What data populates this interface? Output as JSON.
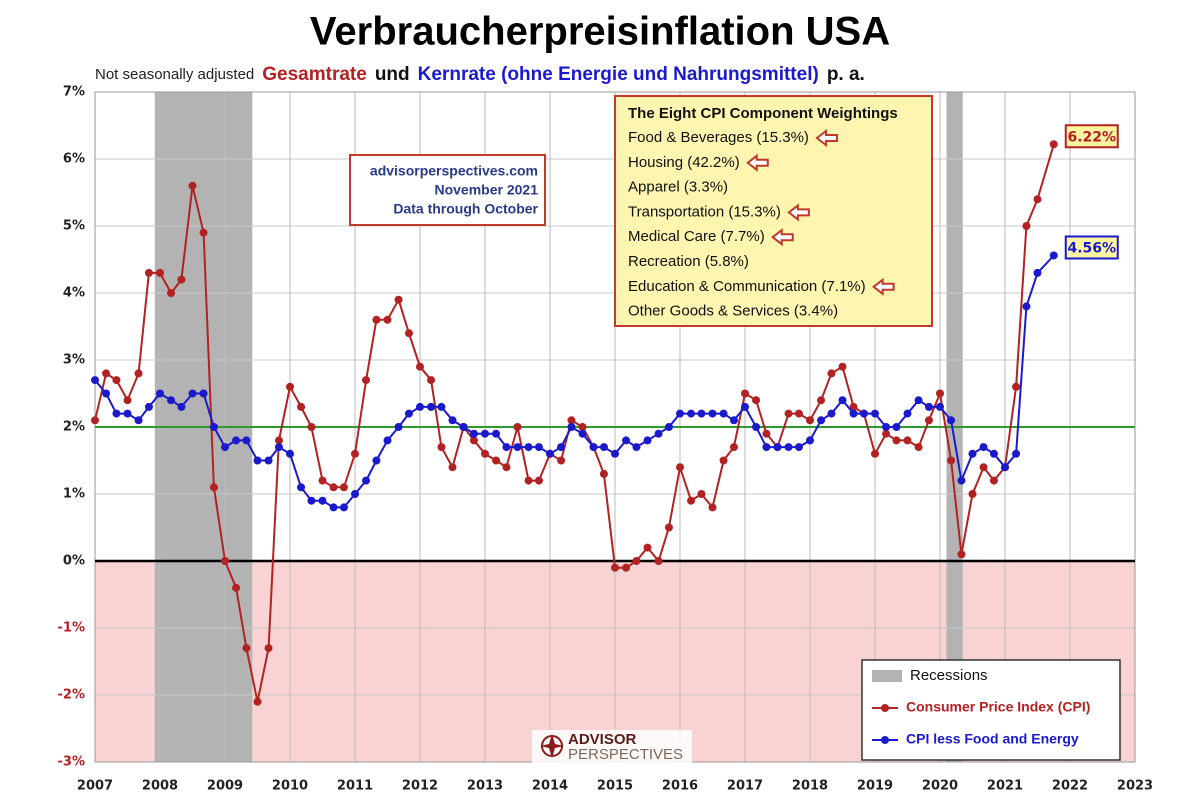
{
  "chart_data": {
    "type": "line",
    "title": "Verbraucherpreisinflation USA",
    "subtitle": [
      {
        "text": "Not seasonally adjusted",
        "color": "#222222"
      },
      {
        "text": "Gesamtrate",
        "color": "#b22222"
      },
      {
        "text": "und",
        "color": "#111111"
      },
      {
        "text": "Kernrate (ohne Energie und Nahrungsmittel)",
        "color": "#1a1acc"
      },
      {
        "text": "p. a.",
        "color": "#111111"
      }
    ],
    "xlim": [
      2007,
      2023
    ],
    "xticks": [
      2007,
      2008,
      2009,
      2010,
      2011,
      2012,
      2013,
      2014,
      2015,
      2016,
      2017,
      2018,
      2019,
      2020,
      2021,
      2022,
      2023
    ],
    "ylim": [
      -3,
      7
    ],
    "yticks": [
      {
        "value": -3,
        "label": "-3%"
      },
      {
        "value": -2,
        "label": "-2%"
      },
      {
        "value": -1,
        "label": "-1%"
      },
      {
        "value": 0,
        "label": "0%"
      },
      {
        "value": 1,
        "label": "1%"
      },
      {
        "value": 2,
        "label": "2%"
      },
      {
        "value": 3,
        "label": "3%"
      },
      {
        "value": 4,
        "label": "4%"
      },
      {
        "value": 5,
        "label": "5%"
      },
      {
        "value": 6,
        "label": "6%"
      },
      {
        "value": 7,
        "label": "7%"
      }
    ],
    "grid": true,
    "reference_line": {
      "value": 2,
      "color": "#2e9a2e"
    },
    "negative_fill": "#f9d3d3",
    "x": [
      2007,
      2007.17,
      2007.33,
      2007.5,
      2007.67,
      2007.83,
      2008,
      2008.17,
      2008.33,
      2008.5,
      2008.67,
      2008.83,
      2009,
      2009.17,
      2009.33,
      2009.5,
      2009.67,
      2009.83,
      2010,
      2010.17,
      2010.33,
      2010.5,
      2010.67,
      2010.83,
      2011,
      2011.17,
      2011.33,
      2011.5,
      2011.67,
      2011.83,
      2012,
      2012.17,
      2012.33,
      2012.5,
      2012.67,
      2012.83,
      2013,
      2013.17,
      2013.33,
      2013.5,
      2013.67,
      2013.83,
      2014,
      2014.17,
      2014.33,
      2014.5,
      2014.67,
      2014.83,
      2015,
      2015.17,
      2015.33,
      2015.5,
      2015.67,
      2015.83,
      2016,
      2016.17,
      2016.33,
      2016.5,
      2016.67,
      2016.83,
      2017,
      2017.17,
      2017.33,
      2017.5,
      2017.67,
      2017.83,
      2018,
      2018.17,
      2018.33,
      2018.5,
      2018.67,
      2018.83,
      2019,
      2019.17,
      2019.33,
      2019.5,
      2019.67,
      2019.83,
      2020,
      2020.17,
      2020.33,
      2020.5,
      2020.67,
      2020.83,
      2021,
      2021.17,
      2021.33,
      2021.5,
      2021.75
    ],
    "series": [
      {
        "name": "Consumer Price Index (CPI)",
        "color": "#b22222",
        "values": [
          2.1,
          2.8,
          2.7,
          2.4,
          2.8,
          4.3,
          4.3,
          4.0,
          4.2,
          5.6,
          4.9,
          1.1,
          0.0,
          -0.4,
          -1.3,
          -2.1,
          -1.3,
          1.8,
          2.6,
          2.3,
          2.0,
          1.2,
          1.1,
          1.1,
          1.6,
          2.7,
          3.6,
          3.6,
          3.9,
          3.4,
          2.9,
          2.7,
          1.7,
          1.4,
          2.0,
          1.8,
          1.6,
          1.5,
          1.4,
          2.0,
          1.2,
          1.2,
          1.6,
          1.5,
          2.1,
          2.0,
          1.7,
          1.3,
          -0.1,
          -0.1,
          0.0,
          0.2,
          0.0,
          0.5,
          1.4,
          0.9,
          1.0,
          0.8,
          1.5,
          1.7,
          2.5,
          2.4,
          1.9,
          1.7,
          2.2,
          2.2,
          2.1,
          2.4,
          2.8,
          2.9,
          2.3,
          2.2,
          1.6,
          1.9,
          1.8,
          1.8,
          1.7,
          2.1,
          2.5,
          1.5,
          0.1,
          1.0,
          1.4,
          1.2,
          1.4,
          2.6,
          5.0,
          5.4,
          6.22
        ],
        "last_label": "6.22%"
      },
      {
        "name": "CPI less Food and Energy",
        "color": "#1a1acc",
        "values": [
          2.7,
          2.5,
          2.2,
          2.2,
          2.1,
          2.3,
          2.5,
          2.4,
          2.3,
          2.5,
          2.5,
          2.0,
          1.7,
          1.8,
          1.8,
          1.5,
          1.5,
          1.7,
          1.6,
          1.1,
          0.9,
          0.9,
          0.8,
          0.8,
          1.0,
          1.2,
          1.5,
          1.8,
          2.0,
          2.2,
          2.3,
          2.3,
          2.3,
          2.1,
          2.0,
          1.9,
          1.9,
          1.9,
          1.7,
          1.7,
          1.7,
          1.7,
          1.6,
          1.7,
          2.0,
          1.9,
          1.7,
          1.7,
          1.6,
          1.8,
          1.7,
          1.8,
          1.9,
          2.0,
          2.2,
          2.2,
          2.2,
          2.2,
          2.2,
          2.1,
          2.3,
          2.0,
          1.7,
          1.7,
          1.7,
          1.7,
          1.8,
          2.1,
          2.2,
          2.4,
          2.2,
          2.2,
          2.2,
          2.0,
          2.0,
          2.2,
          2.4,
          2.3,
          2.3,
          2.1,
          1.2,
          1.6,
          1.7,
          1.6,
          1.4,
          1.6,
          3.8,
          4.3,
          4.56
        ],
        "last_label": "4.56%"
      }
    ],
    "recessions": {
      "label": "Recessions",
      "color": "#b3b3b3",
      "periods": [
        [
          2007.92,
          2009.42
        ],
        [
          2020.1,
          2020.35
        ]
      ]
    },
    "source_box": [
      "advisorperspectives.com",
      "November 2021",
      "Data through October"
    ],
    "weightings": {
      "title": "The Eight CPI Component Weightings",
      "items": [
        {
          "text": "Food & Beverages (15.3%)",
          "arrow": true
        },
        {
          "text": "Housing (42.2%)",
          "arrow": true
        },
        {
          "text": "Apparel (3.3%)",
          "arrow": false
        },
        {
          "text": "Transportation (15.3%)",
          "arrow": true
        },
        {
          "text": "Medical Care (7.7%)",
          "arrow": true
        },
        {
          "text": "Recreation (5.8%)",
          "arrow": false
        },
        {
          "text": "Education & Communication (7.1%)",
          "arrow": true
        },
        {
          "text": "Other Goods & Services (3.4%)",
          "arrow": false
        }
      ]
    },
    "logo": [
      "ADVISOR",
      "PERSPECTIVES"
    ]
  }
}
